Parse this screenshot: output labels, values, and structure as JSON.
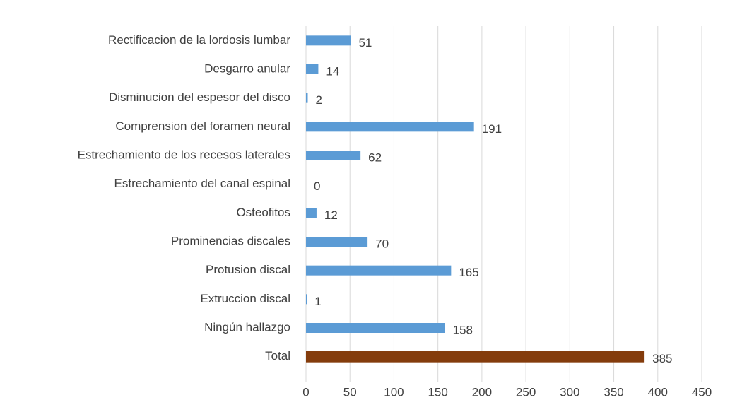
{
  "chart_data": {
    "type": "bar",
    "orientation": "horizontal",
    "categories": [
      "Rectificacion de la lordosis lumbar",
      "Desgarro anular",
      "Disminucion del espesor del disco",
      "Comprension del foramen neural",
      "Estrechamiento de los recesos laterales",
      "Estrechamiento del canal espinal",
      "Osteofitos",
      "Prominencias discales",
      "Protusion discal",
      "Extruccion discal",
      "Ningún hallazgo",
      "Total"
    ],
    "values": [
      51,
      14,
      2,
      191,
      62,
      0,
      12,
      70,
      165,
      1,
      158,
      385
    ],
    "colors": [
      "#5b9bd5",
      "#5b9bd5",
      "#5b9bd5",
      "#5b9bd5",
      "#5b9bd5",
      "#5b9bd5",
      "#5b9bd5",
      "#5b9bd5",
      "#5b9bd5",
      "#5b9bd5",
      "#5b9bd5",
      "#843c0c"
    ],
    "xlim": [
      0,
      450
    ],
    "xticks": [
      0,
      50,
      100,
      150,
      200,
      250,
      300,
      350,
      400,
      450
    ],
    "grid": true
  }
}
